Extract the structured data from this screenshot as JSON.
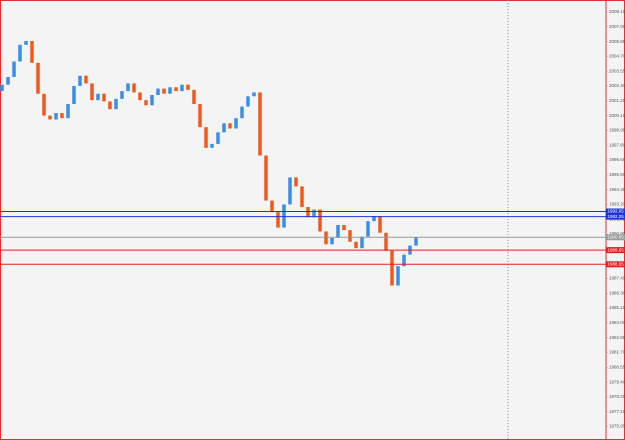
{
  "chart_data": {
    "type": "candlestick",
    "up_color": "#3a8ee6",
    "down_color": "#ee5a1e",
    "open": [
      2002.0,
      2002.5,
      2003.1,
      2004.3,
      2005.6,
      2005.9,
      2004.2,
      2001.8,
      2000.1,
      1999.8,
      2000.3,
      1999.9,
      2001.0,
      2002.4,
      2003.2,
      2002.6,
      2001.3,
      2001.8,
      2001.2,
      2000.6,
      2001.4,
      2002.0,
      2002.6,
      2001.9,
      2001.3,
      2000.9,
      2001.7,
      2002.2,
      2001.8,
      2002.3,
      2002.0,
      2002.5,
      2002.1,
      2001.0,
      1999.2,
      1997.6,
      1997.9,
      1998.8,
      1999.5,
      1999.1,
      1999.9,
      2000.8,
      2001.6,
      2001.9,
      1997.0,
      1993.5,
      1992.6,
      1991.4,
      1993.2,
      1995.3,
      1994.6,
      1993.0,
      1992.2,
      1992.8,
      1991.1,
      1990.1,
      1990.6,
      1991.6,
      1991.2,
      1990.3,
      1989.8,
      1990.7,
      1991.9,
      1992.3,
      1991.0,
      1989.6,
      1986.9,
      1988.4,
      1989.3,
      1990.0
    ],
    "close": [
      2002.5,
      2003.1,
      2004.3,
      2005.6,
      2005.9,
      2004.2,
      2001.8,
      2000.1,
      1999.8,
      2000.3,
      1999.9,
      2001.0,
      2002.4,
      2003.2,
      2002.6,
      2001.3,
      2001.8,
      2001.2,
      2000.6,
      2001.4,
      2002.0,
      2002.6,
      2001.9,
      2001.3,
      2000.9,
      2001.7,
      2002.2,
      2001.8,
      2002.3,
      2002.0,
      2002.5,
      2002.1,
      2001.0,
      1999.2,
      1997.6,
      1997.9,
      1998.8,
      1999.5,
      1999.1,
      1999.9,
      2000.8,
      2001.6,
      2001.9,
      1997.0,
      1993.5,
      1992.6,
      1991.4,
      1993.2,
      1995.3,
      1994.6,
      1993.0,
      1992.2,
      1992.8,
      1991.1,
      1990.1,
      1990.6,
      1991.6,
      1991.2,
      1990.3,
      1989.8,
      1990.7,
      1991.9,
      1992.3,
      1991.0,
      1989.6,
      1986.9,
      1988.4,
      1989.3,
      1990.0,
      1990.65
    ],
    "ylim": [
      1974.9,
      2009.08
    ],
    "yticks": [
      2008.15,
      {
        "value": 2007,
        "label": "2007.00"
      },
      2005.85,
      {
        "value": 2004.7,
        "label": "2004.70"
      },
      2003.55,
      {
        "value": 2002.4,
        "label": "2002.40"
      },
      2001.25,
      {
        "value": 2000.1,
        "label": "2000.10"
      },
      1998.95,
      {
        "value": 1997.8,
        "label": "1997.80"
      },
      1996.65,
      {
        "value": 1995.5,
        "label": "1995.50"
      },
      1994.35,
      {
        "value": 1993.2,
        "label": "1993.20"
      },
      1992.05,
      {
        "value": 1990.9,
        "label": "1990.90"
      },
      1989.75,
      {
        "value": 1988.6,
        "label": "1988.60"
      },
      1987.45,
      {
        "value": 1986.3,
        "label": "1986.30"
      },
      1985.15,
      {
        "value": 1984,
        "label": "1984.00"
      },
      1982.85,
      {
        "value": 1981.7,
        "label": "1981.70"
      },
      1980.55,
      {
        "value": 1979.4,
        "label": "1979.40"
      },
      1978.25,
      {
        "value": 1977.1,
        "label": "1977.10"
      },
      1975.95
    ],
    "levels": [
      {
        "value": 1992.65,
        "color": "#1f35d6"
      },
      {
        "value": 1992.25,
        "color": "#1f35d6"
      },
      {
        "value": 1990.65,
        "color": "#9a9a9a"
      },
      {
        "value": 1989.65,
        "color": "#e02020"
      },
      {
        "value": 1988.55,
        "color": "#e02020"
      }
    ]
  }
}
